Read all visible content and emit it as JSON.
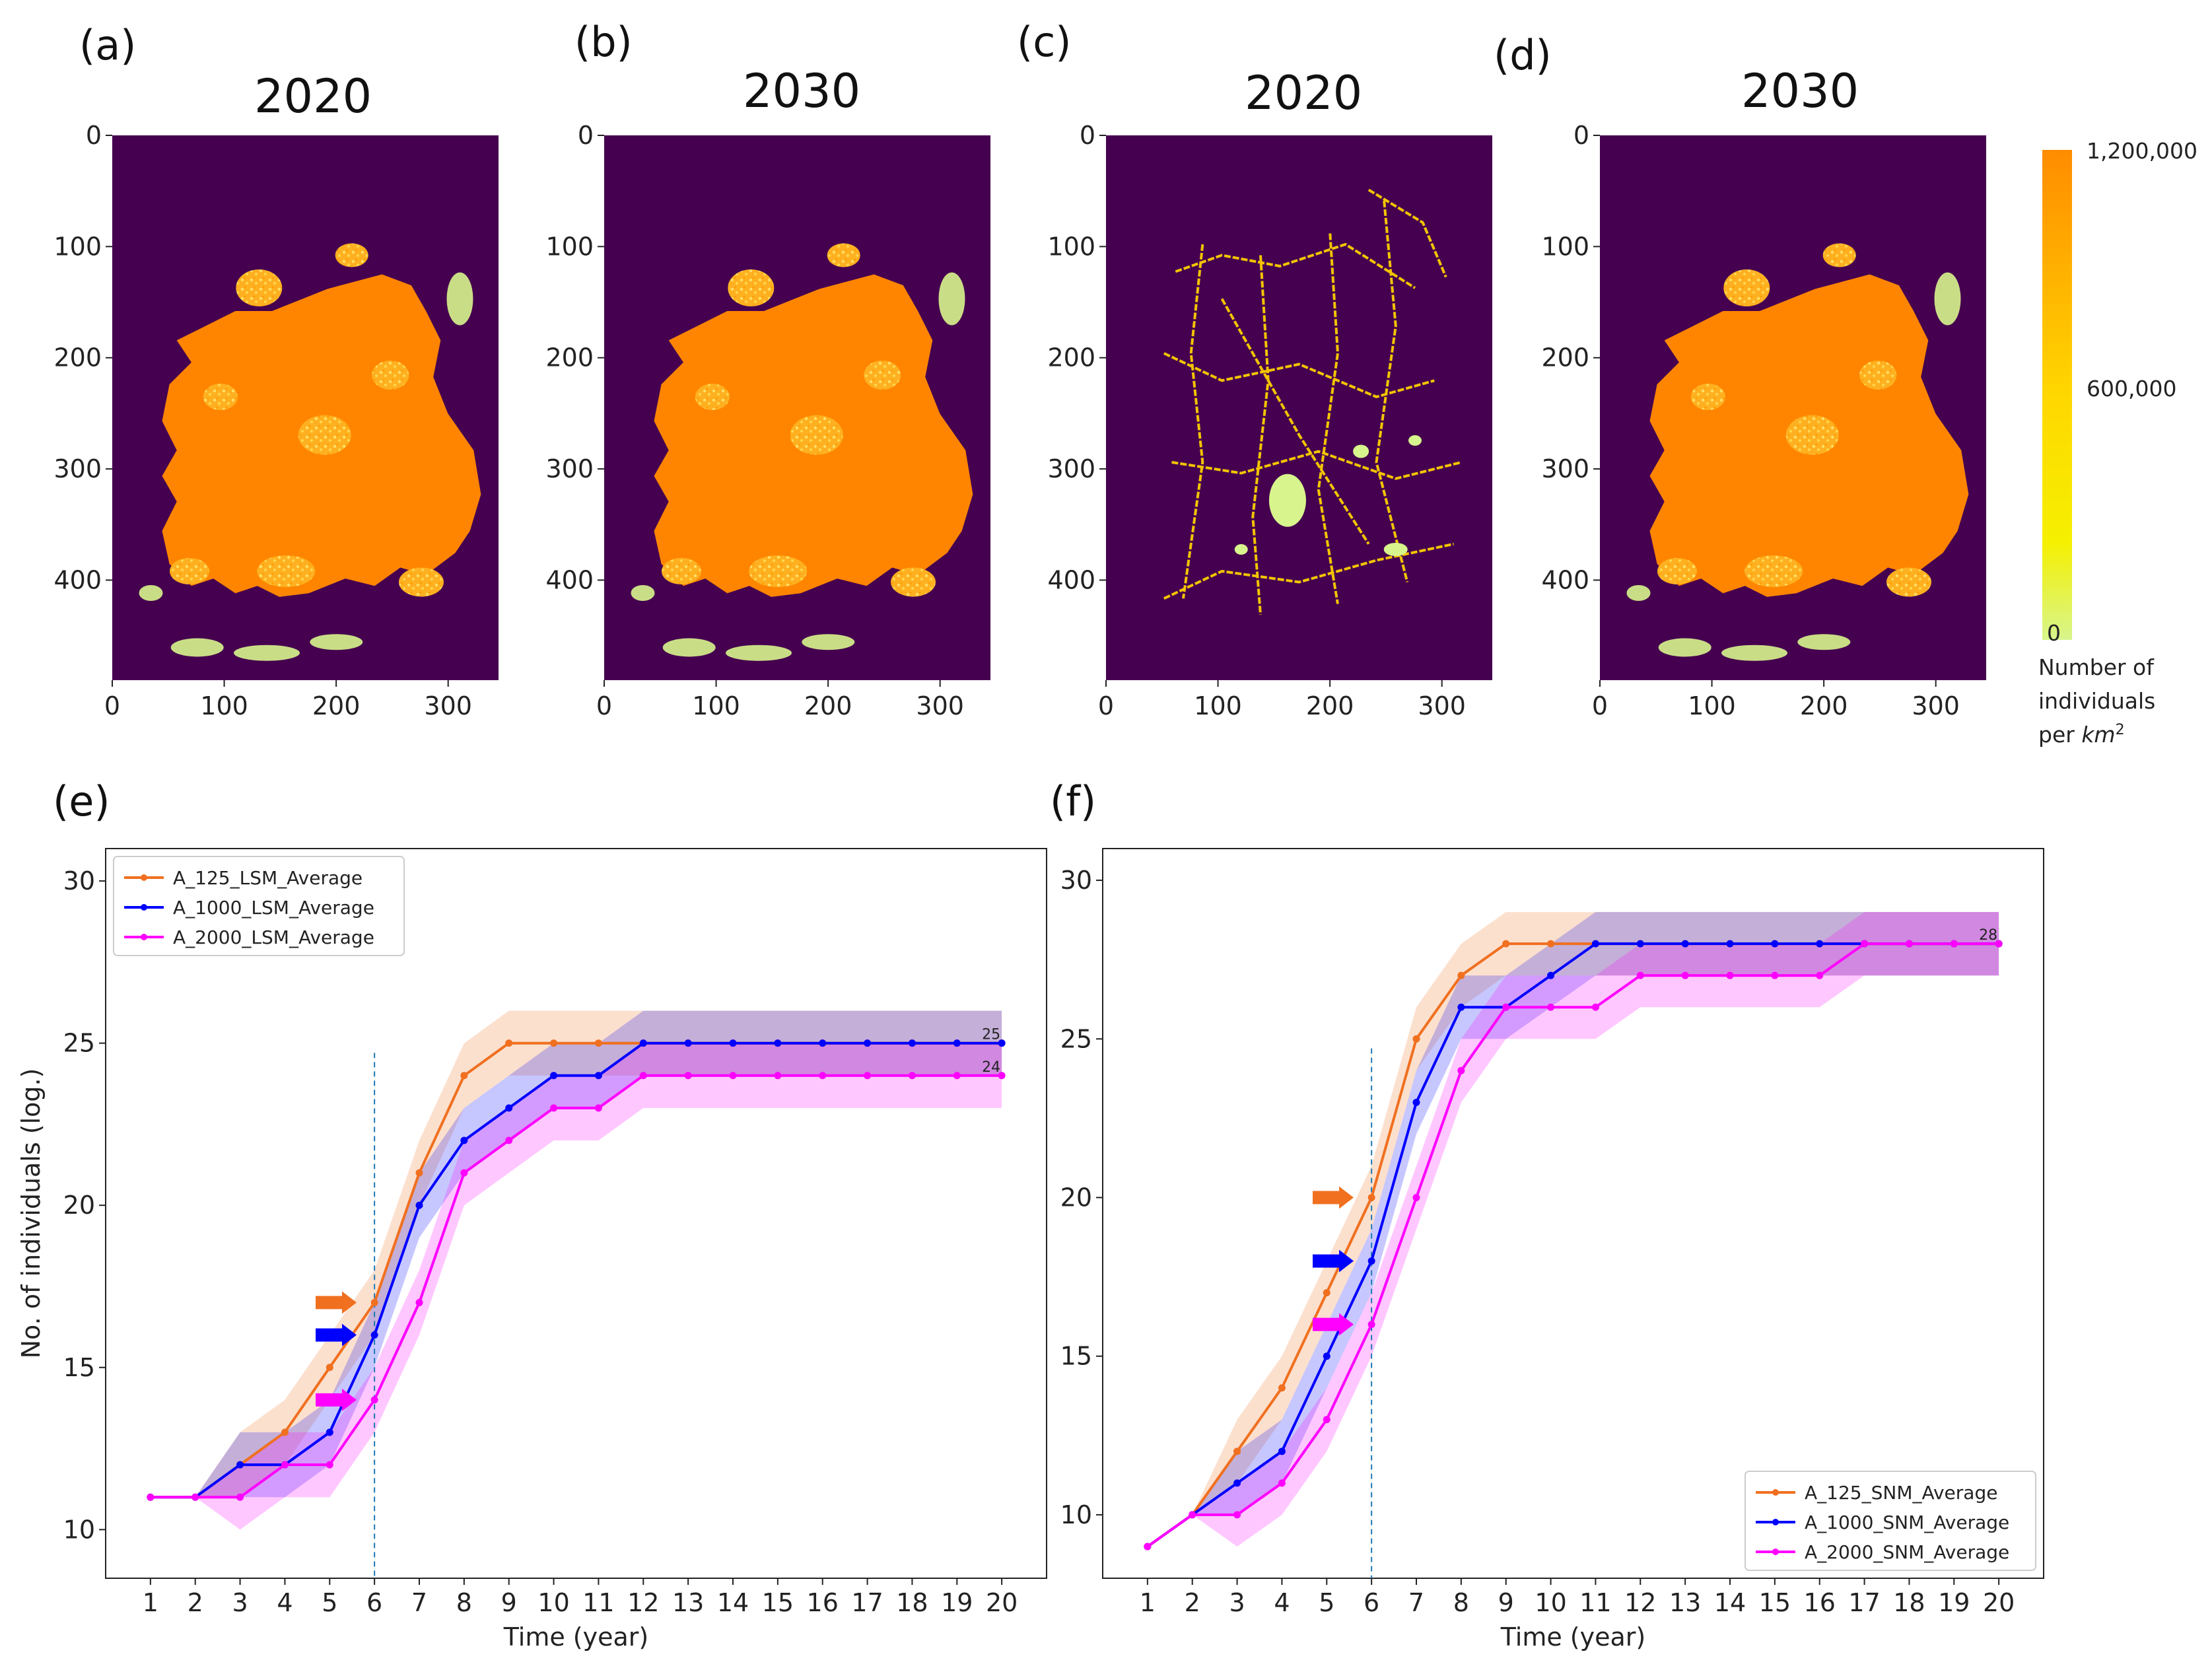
{
  "panels": {
    "a": {
      "label": "(a)",
      "title": "2020"
    },
    "b": {
      "label": "(b)",
      "title": "2030"
    },
    "c": {
      "label": "(c)",
      "title": "2020"
    },
    "d": {
      "label": "(d)",
      "title": "2030"
    },
    "e": {
      "label": "(e)"
    },
    "f": {
      "label": "(f)"
    }
  },
  "map_axes": {
    "y_ticks": [
      "0",
      "100",
      "200",
      "300",
      "400"
    ],
    "x_ticks": [
      "0",
      "100",
      "200",
      "300"
    ]
  },
  "colorbar": {
    "ticks": [
      "1,200,000",
      "600,000",
      "0"
    ],
    "caption_line1": "Number of",
    "caption_line2": "individuals",
    "caption_line3": "per ",
    "caption_unit": "km",
    "caption_exp": "2",
    "color_top": "#ff8c00",
    "color_mid": "#ffd700",
    "color_bottom": "#d7f58c"
  },
  "colors": {
    "map_background": "#45004f",
    "map_fill": "#ff8500",
    "map_speckle": "#ffcc33",
    "orange": "#f07020",
    "blue": "#0000ff",
    "magenta": "#ff00ff",
    "vline": "#1f77b4"
  },
  "chart_data": [
    {
      "type": "line",
      "panel": "(e)",
      "xlabel": "Time (year)",
      "ylabel": "No. of individuals (log.)",
      "x": [
        1,
        2,
        3,
        4,
        5,
        6,
        7,
        8,
        9,
        10,
        11,
        12,
        13,
        14,
        15,
        16,
        17,
        18,
        19,
        20
      ],
      "xlim": [
        0,
        21
      ],
      "ylim": [
        8.5,
        31
      ],
      "yticks": [
        10,
        15,
        20,
        25,
        30
      ],
      "vline_x": 6,
      "legend_position": "upper-left",
      "series": [
        {
          "name": "A_125_LSM_Average",
          "color": "orange",
          "values": [
            11,
            11,
            12,
            13,
            15,
            17,
            21,
            24,
            25,
            25,
            25,
            25,
            25,
            25,
            25,
            25,
            25,
            25,
            25,
            25
          ],
          "lower": [
            11,
            11,
            11,
            12,
            14,
            16,
            20,
            23,
            24,
            24,
            24,
            24,
            24,
            24,
            24,
            24,
            24,
            24,
            24,
            24
          ],
          "upper": [
            11,
            11,
            13,
            14,
            16,
            18,
            22,
            25,
            26,
            26,
            26,
            26,
            26,
            26,
            26,
            26,
            26,
            26,
            26,
            26
          ]
        },
        {
          "name": "A_1000_LSM_Average",
          "color": "blue",
          "values": [
            11,
            11,
            12,
            12,
            13,
            16,
            20,
            22,
            23,
            24,
            24,
            25,
            25,
            25,
            25,
            25,
            25,
            25,
            25,
            25
          ],
          "lower": [
            11,
            11,
            11,
            11,
            12,
            15,
            19,
            21,
            22,
            23,
            23,
            24,
            24,
            24,
            24,
            24,
            24,
            24,
            24,
            24
          ],
          "upper": [
            11,
            11,
            13,
            13,
            14,
            17,
            21,
            23,
            24,
            25,
            25,
            26,
            26,
            26,
            26,
            26,
            26,
            26,
            26,
            26
          ]
        },
        {
          "name": "A_2000_LSM_Average",
          "color": "magenta",
          "values": [
            11,
            11,
            11,
            12,
            12,
            14,
            17,
            21,
            22,
            23,
            23,
            24,
            24,
            24,
            24,
            24,
            24,
            24,
            24,
            24
          ],
          "lower": [
            11,
            11,
            10,
            11,
            11,
            13,
            16,
            20,
            21,
            22,
            22,
            23,
            23,
            23,
            23,
            23,
            23,
            23,
            23,
            23
          ],
          "upper": [
            11,
            11,
            12,
            13,
            13,
            15,
            18,
            22,
            23,
            24,
            24,
            25,
            25,
            25,
            25,
            25,
            25,
            25,
            25,
            25
          ]
        }
      ],
      "end_labels": [
        {
          "text": "25",
          "x": 20,
          "y": 25,
          "color": "blue"
        },
        {
          "text": "24",
          "x": 20,
          "y": 24,
          "color": "blue"
        }
      ],
      "arrows": [
        {
          "x": 5.6,
          "y": 17,
          "color": "orange"
        },
        {
          "x": 5.6,
          "y": 16,
          "color": "blue"
        },
        {
          "x": 5.6,
          "y": 14,
          "color": "magenta"
        }
      ]
    },
    {
      "type": "line",
      "panel": "(f)",
      "xlabel": "Time (year)",
      "ylabel": "",
      "x": [
        1,
        2,
        3,
        4,
        5,
        6,
        7,
        8,
        9,
        10,
        11,
        12,
        13,
        14,
        15,
        16,
        17,
        18,
        19,
        20
      ],
      "xlim": [
        0,
        21
      ],
      "ylim": [
        8.0,
        31
      ],
      "yticks": [
        10,
        15,
        20,
        25,
        30
      ],
      "vline_x": 6,
      "legend_position": "lower-right",
      "series": [
        {
          "name": "A_125_SNM_Average",
          "color": "orange",
          "values": [
            9,
            10,
            12,
            14,
            17,
            20,
            25,
            27,
            28,
            28,
            28,
            28,
            28,
            28,
            28,
            28,
            28,
            28,
            28,
            28
          ],
          "lower": [
            9,
            10,
            11,
            13,
            16,
            19,
            24,
            26,
            27,
            27,
            27,
            27,
            27,
            27,
            27,
            27,
            27,
            27,
            27,
            27
          ],
          "upper": [
            9,
            10,
            13,
            15,
            18,
            21,
            26,
            28,
            29,
            29,
            29,
            29,
            29,
            29,
            29,
            29,
            29,
            29,
            29,
            29
          ]
        },
        {
          "name": "A_1000_SNM_Average",
          "color": "blue",
          "values": [
            9,
            10,
            11,
            12,
            15,
            18,
            23,
            26,
            26,
            27,
            28,
            28,
            28,
            28,
            28,
            28,
            28,
            28,
            28,
            28
          ],
          "lower": [
            9,
            10,
            10,
            11,
            14,
            17,
            22,
            25,
            25,
            26,
            27,
            27,
            27,
            27,
            27,
            27,
            27,
            27,
            27,
            27
          ],
          "upper": [
            9,
            10,
            12,
            13,
            16,
            19,
            24,
            27,
            27,
            28,
            29,
            29,
            29,
            29,
            29,
            29,
            29,
            29,
            29,
            29
          ]
        },
        {
          "name": "A_2000_SNM_Average",
          "color": "magenta",
          "values": [
            9,
            10,
            10,
            11,
            13,
            16,
            20,
            24,
            26,
            26,
            26,
            27,
            27,
            27,
            27,
            27,
            28,
            28,
            28,
            28
          ],
          "lower": [
            9,
            10,
            9,
            10,
            12,
            15,
            19,
            23,
            25,
            25,
            25,
            26,
            26,
            26,
            26,
            26,
            27,
            27,
            27,
            27
          ],
          "upper": [
            9,
            10,
            11,
            12,
            14,
            17,
            21,
            25,
            27,
            27,
            27,
            28,
            28,
            28,
            28,
            28,
            29,
            29,
            29,
            29
          ]
        }
      ],
      "end_labels": [
        {
          "text": "28",
          "x": 20,
          "y": 28,
          "color": "blue"
        }
      ],
      "arrows": [
        {
          "x": 5.6,
          "y": 20,
          "color": "orange"
        },
        {
          "x": 5.6,
          "y": 18,
          "color": "blue"
        },
        {
          "x": 5.6,
          "y": 16,
          "color": "magenta"
        }
      ]
    }
  ]
}
